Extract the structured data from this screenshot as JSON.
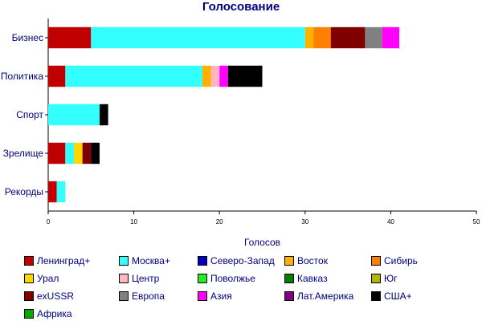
{
  "chart_data": {
    "type": "bar",
    "orientation": "horizontal",
    "stacked": true,
    "title": "Голосование",
    "xlabel": "Голосов",
    "ylabel": "",
    "xlim": [
      0,
      50
    ],
    "x_ticks": [
      0,
      10,
      20,
      30,
      40,
      50
    ],
    "categories": [
      "Бизнес",
      "Политика",
      "Спорт",
      "Зрелище",
      "Рекорды"
    ],
    "series": [
      {
        "name": "Ленинград+",
        "color": "#C00000",
        "values": [
          5,
          2,
          0,
          2,
          1
        ]
      },
      {
        "name": "Москва+",
        "color": "#33FFFF",
        "values": [
          25,
          16,
          6,
          1,
          1
        ]
      },
      {
        "name": "Северо-Запад",
        "color": "#0000C0",
        "values": [
          0,
          0,
          0,
          0,
          0
        ]
      },
      {
        "name": "Восток",
        "color": "#FFB000",
        "values": [
          1,
          1,
          0,
          0,
          0
        ]
      },
      {
        "name": "Сибирь",
        "color": "#FF8000",
        "values": [
          2,
          0,
          0,
          0,
          0
        ]
      },
      {
        "name": "Урал",
        "color": "#FFD700",
        "values": [
          0,
          0,
          0,
          1,
          0
        ]
      },
      {
        "name": "Центр",
        "color": "#FFB6C1",
        "values": [
          0,
          1,
          0,
          0,
          0
        ]
      },
      {
        "name": "Поволжье",
        "color": "#22EE22",
        "values": [
          0,
          0,
          0,
          0,
          0
        ]
      },
      {
        "name": "Кавказ",
        "color": "#008000",
        "values": [
          0,
          0,
          0,
          0,
          0
        ]
      },
      {
        "name": "Юг",
        "color": "#B5B500",
        "values": [
          0,
          0,
          0,
          0,
          0
        ]
      },
      {
        "name": "exUSSR",
        "color": "#800000",
        "values": [
          4,
          0,
          0,
          1,
          0
        ]
      },
      {
        "name": "Европа",
        "color": "#808080",
        "values": [
          2,
          0,
          0,
          0,
          0
        ]
      },
      {
        "name": "Азия",
        "color": "#FF00FF",
        "values": [
          2,
          1,
          0,
          0,
          0
        ]
      },
      {
        "name": "Лат.Америка",
        "color": "#800080",
        "values": [
          0,
          0,
          0,
          0,
          0
        ]
      },
      {
        "name": "США+",
        "color": "#000000",
        "values": [
          0,
          4,
          1,
          1,
          0
        ]
      },
      {
        "name": "Африка",
        "color": "#00AA00",
        "values": [
          0,
          0,
          0,
          0,
          0
        ]
      }
    ],
    "grid": false,
    "legend_position": "bottom"
  }
}
